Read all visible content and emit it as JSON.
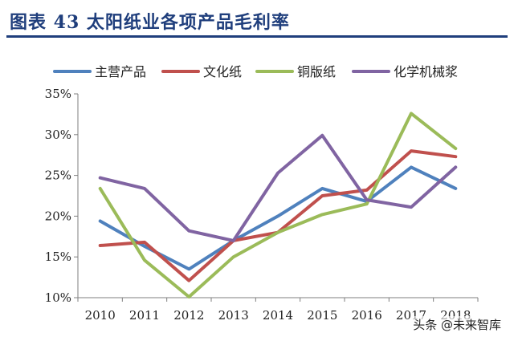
{
  "header": {
    "title": "图表 43  太阳纸业各项产品毛利率"
  },
  "watermark": "头条 @未来智库",
  "chart_data": {
    "type": "line",
    "title": "太阳纸业各项产品毛利率",
    "xlabel": "",
    "ylabel": "",
    "ylim": [
      10,
      35
    ],
    "y_ticks": [
      10,
      15,
      20,
      25,
      30,
      35
    ],
    "y_tick_format": "percent",
    "grid": false,
    "legend_position": "top",
    "x": [
      "2010",
      "2011",
      "2012",
      "2013",
      "2014",
      "2015",
      "2016",
      "2017",
      "2018"
    ],
    "series": [
      {
        "name": "主营产品",
        "color": "#4f81bd",
        "values": [
          19.4,
          16.3,
          13.5,
          17.0,
          20.0,
          23.4,
          21.8,
          26.0,
          23.4
        ]
      },
      {
        "name": "文化纸",
        "color": "#c0504d",
        "values": [
          16.4,
          16.8,
          12.1,
          17.0,
          18.0,
          22.5,
          23.2,
          28.0,
          27.3
        ]
      },
      {
        "name": "铜版纸",
        "color": "#9bbb59",
        "values": [
          23.4,
          14.6,
          10.1,
          15.0,
          18.0,
          20.2,
          21.5,
          32.6,
          28.3
        ]
      },
      {
        "name": "化学机械浆",
        "color": "#8064a2",
        "values": [
          24.7,
          23.4,
          18.2,
          17.0,
          25.3,
          29.9,
          22.0,
          21.1,
          26.0
        ]
      }
    ]
  }
}
